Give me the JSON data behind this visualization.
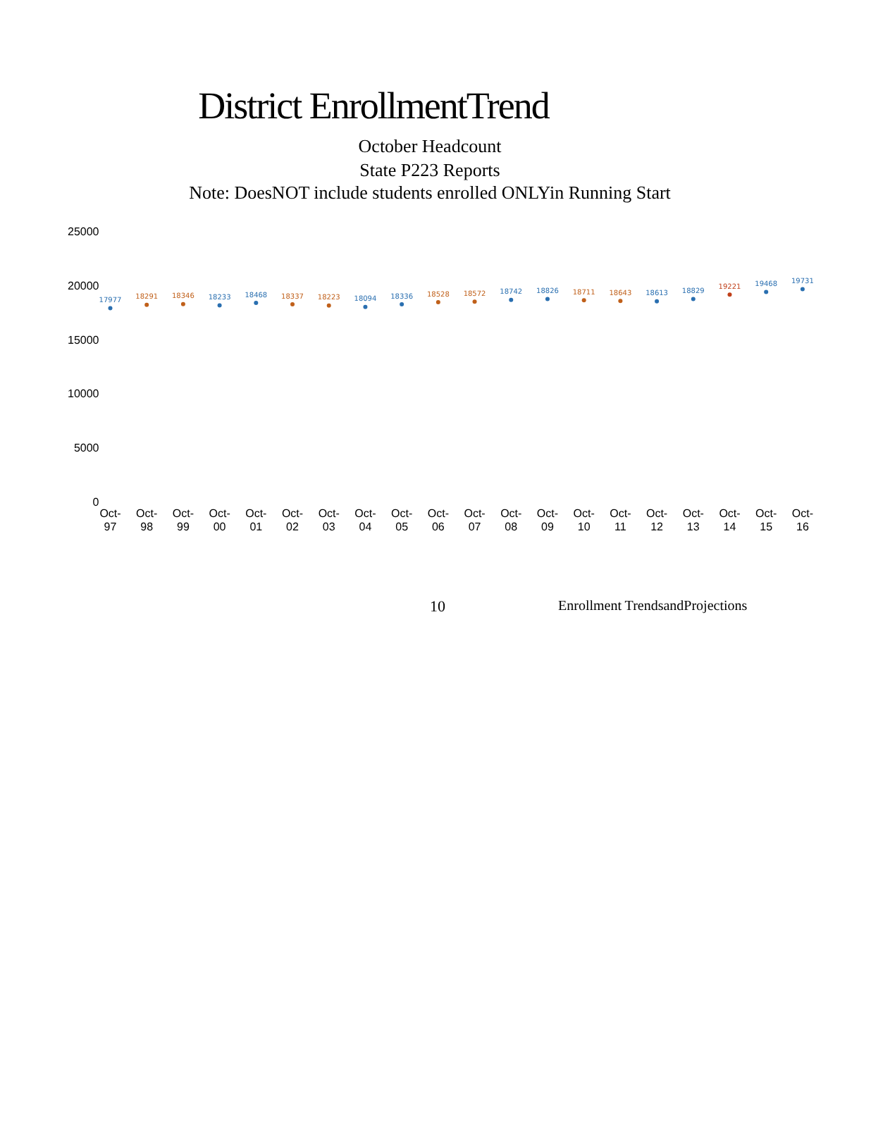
{
  "chart_data": {
    "type": "scatter",
    "title": "District EnrollmentTrend",
    "subtitle": "October Headcount\nState P223 Reports",
    "annotations": [
      "Note: DoesNOT include students enrolled ONLYin Running Start",
      "10",
      "Enrollment TrendsandProjections"
    ],
    "categories": [
      "Oct-97",
      "Oct-98",
      "Oct-99",
      "Oct-00",
      "Oct-01",
      "Oct-02",
      "Oct-03",
      "Oct-04",
      "Oct-05",
      "Oct-06",
      "Oct-07",
      "Oct-08",
      "Oct-09",
      "Oct-10",
      "Oct-11",
      "Oct-12",
      "Oct-13",
      "Oct-14",
      "Oct-15",
      "Oct-16"
    ],
    "values": [
      17977,
      18291,
      18346,
      18233,
      18468,
      18337,
      18223,
      18094,
      18336,
      18528,
      18572,
      18742,
      18826,
      18711,
      18643,
      18613,
      18829,
      19221,
      19468,
      19731
    ],
    "colors": [
      "#2a6fb0",
      "#c0601a",
      "#c0601a",
      "#2a6fb0",
      "#2a6fb0",
      "#c0601a",
      "#c0601a",
      "#2a6fb0",
      "#2a6fb0",
      "#c0601a",
      "#c0601a",
      "#2a6fb0",
      "#2a6fb0",
      "#c0601a",
      "#c0601a",
      "#2a6fb0",
      "#2a6fb0",
      "#c0401a",
      "#2a6fb0",
      "#2a6fb0"
    ],
    "ylim": [
      0,
      25000
    ],
    "yticks": [
      0,
      5000,
      10000,
      15000,
      20000,
      25000
    ],
    "grid": false,
    "legend": false,
    "marker": "circle",
    "data_labels": true
  }
}
